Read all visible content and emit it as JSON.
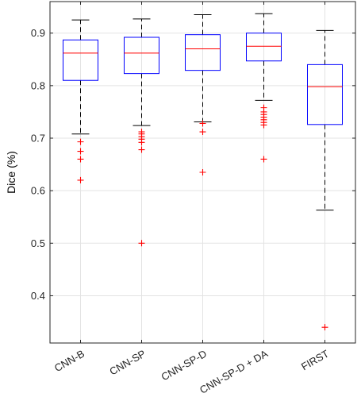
{
  "chart_data": {
    "type": "box",
    "ylabel": "Dice (%)",
    "xlabel": "",
    "ylim": [
      0.31,
      0.96
    ],
    "yticks": [
      0.4,
      0.5,
      0.6,
      0.7,
      0.8,
      0.9
    ],
    "ytick_labels": [
      "0.4",
      "0.5",
      "0.6",
      "0.7",
      "0.8",
      "0.9"
    ],
    "grid": true,
    "categories": [
      "CNN-B",
      "CNN-SP",
      "CNN-SP-D",
      "CNN-SP-D + DA",
      "FIRST"
    ],
    "boxes": [
      {
        "whisker_low": 0.708,
        "q1": 0.81,
        "median": 0.862,
        "q3": 0.887,
        "whisker_high": 0.925,
        "outliers": [
          0.693,
          0.675,
          0.66,
          0.62
        ]
      },
      {
        "whisker_low": 0.724,
        "q1": 0.823,
        "median": 0.862,
        "q3": 0.892,
        "whisker_high": 0.927,
        "outliers": [
          0.712,
          0.708,
          0.703,
          0.698,
          0.692,
          0.678,
          0.5
        ]
      },
      {
        "whisker_low": 0.731,
        "q1": 0.829,
        "median": 0.87,
        "q3": 0.897,
        "whisker_high": 0.935,
        "outliers": [
          0.728,
          0.712,
          0.635
        ]
      },
      {
        "whisker_low": 0.772,
        "q1": 0.847,
        "median": 0.875,
        "q3": 0.9,
        "whisker_high": 0.937,
        "outliers": [
          0.758,
          0.75,
          0.745,
          0.74,
          0.735,
          0.73,
          0.725,
          0.66
        ]
      },
      {
        "whisker_low": 0.563,
        "q1": 0.726,
        "median": 0.798,
        "q3": 0.84,
        "whisker_high": 0.905,
        "outliers": [
          0.34
        ]
      }
    ],
    "colors": {
      "box": "#0000ff",
      "median": "#ff0000",
      "outlier": "#ff0000",
      "whisker": "#000000",
      "grid": "#e3e3e3",
      "axis": "#262626"
    }
  }
}
